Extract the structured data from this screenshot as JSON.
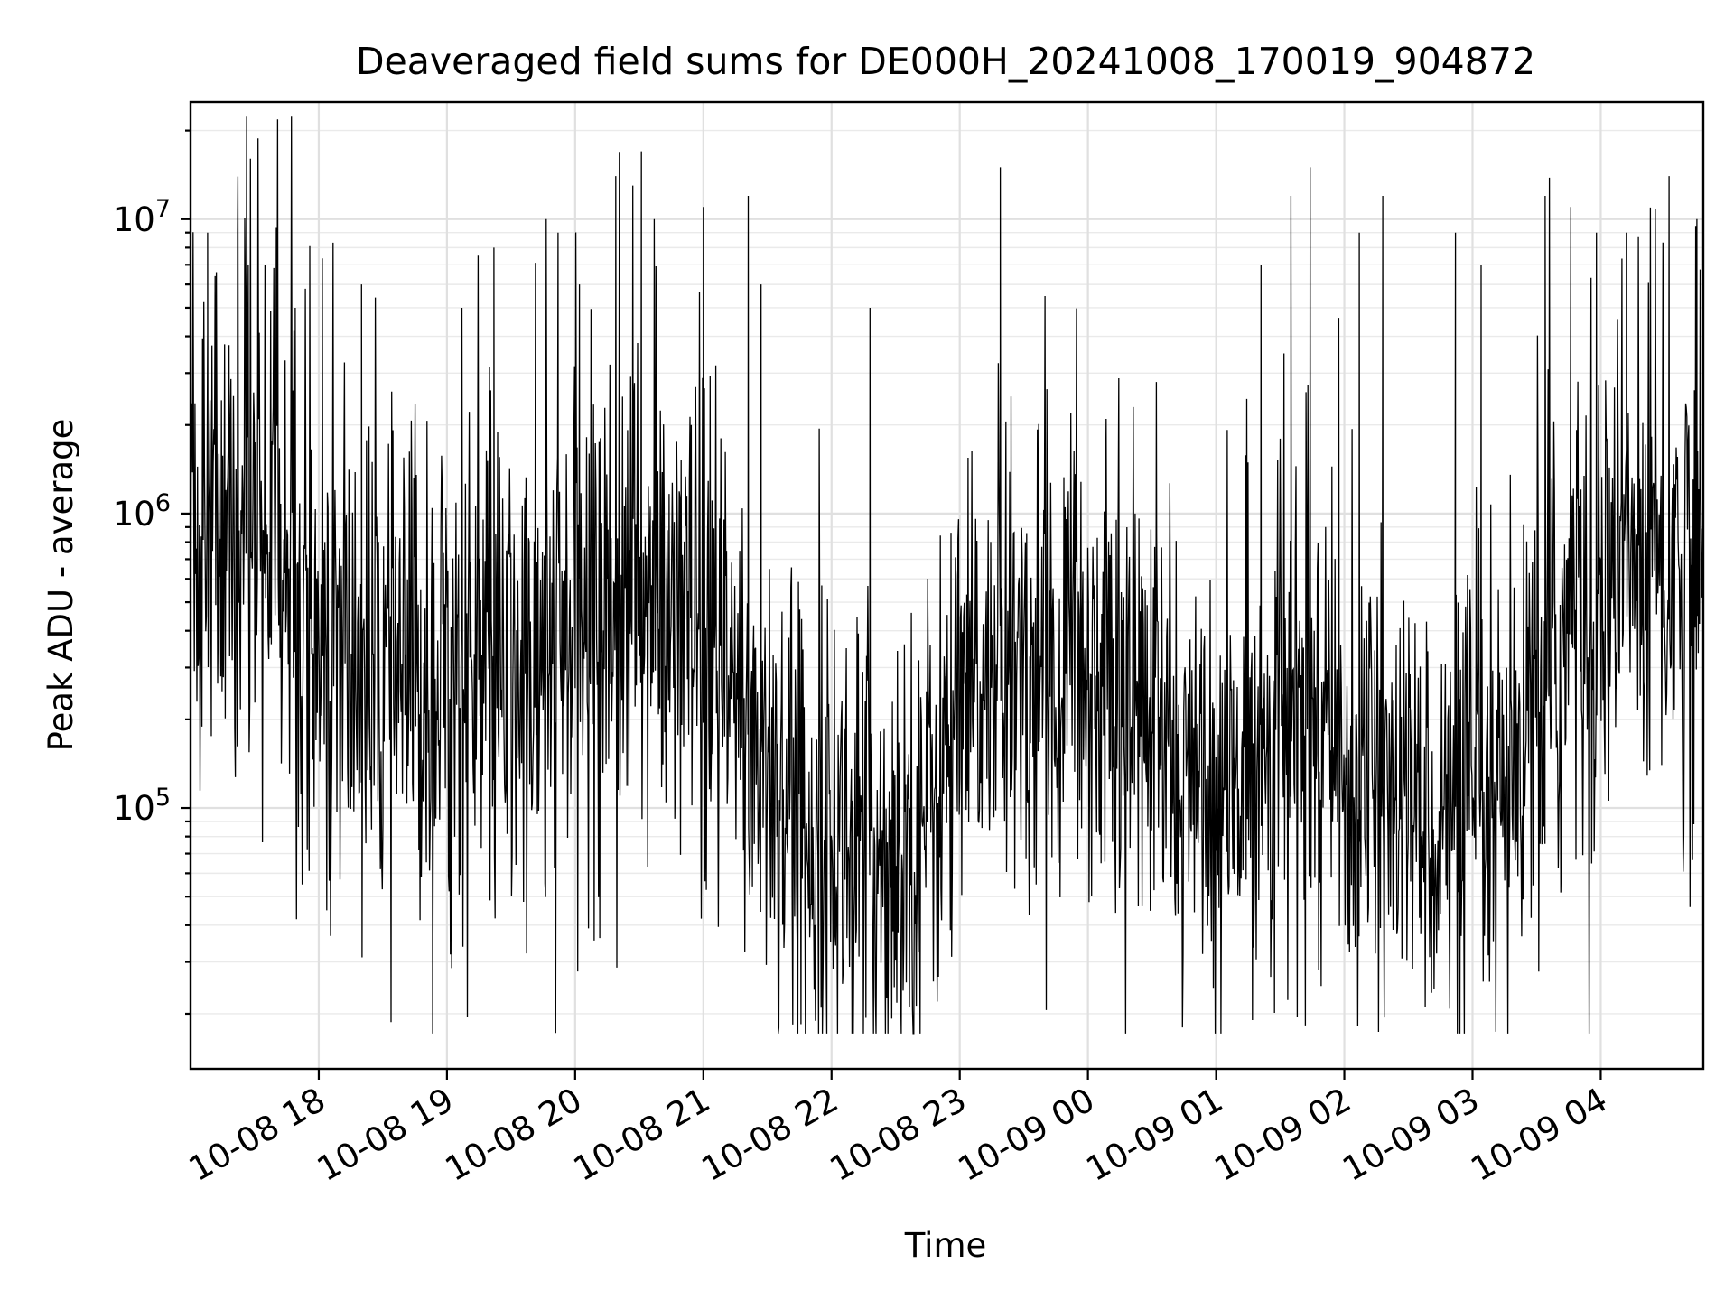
{
  "chart_data": {
    "type": "line",
    "title": "Deaveraged field sums for DE000H_20241008_170019_904872",
    "xlabel": "Time",
    "ylabel": "Peak ADU - average",
    "y_scale": "log",
    "ylim": [
      13000,
      25000000
    ],
    "xlim": [
      "2024-10-08 17:00",
      "2024-10-09 04:48"
    ],
    "grid": true,
    "line_color": "#000000",
    "x_tick_labels": [
      "10-08 18",
      "10-08 19",
      "10-08 20",
      "10-08 21",
      "10-08 22",
      "10-08 23",
      "10-09 00",
      "10-09 01",
      "10-09 02",
      "10-09 03",
      "10-09 04"
    ],
    "y_tick_labels": [
      {
        "value": 100000,
        "base": "10",
        "exp": "5"
      },
      {
        "value": 1000000,
        "base": "10",
        "exp": "6"
      },
      {
        "value": 10000000,
        "base": "10",
        "exp": "7"
      }
    ],
    "series": [
      {
        "x": [
          "2024-10-08 17:00",
          "2024-10-08 17:15",
          "2024-10-08 17:30",
          "2024-10-08 17:45",
          "2024-10-08 18:00",
          "2024-10-08 18:15",
          "2024-10-08 18:30",
          "2024-10-08 18:45",
          "2024-10-08 19:00",
          "2024-10-08 19:15",
          "2024-10-08 19:30",
          "2024-10-08 19:45",
          "2024-10-08 20:00",
          "2024-10-08 20:15",
          "2024-10-08 20:30",
          "2024-10-08 20:45",
          "2024-10-08 21:00",
          "2024-10-08 21:15",
          "2024-10-08 21:30",
          "2024-10-08 21:45",
          "2024-10-08 22:00",
          "2024-10-08 22:15",
          "2024-10-08 22:30",
          "2024-10-08 22:45",
          "2024-10-08 23:00",
          "2024-10-08 23:15",
          "2024-10-08 23:30",
          "2024-10-08 23:45",
          "2024-10-09 00:00",
          "2024-10-09 00:15",
          "2024-10-09 00:30",
          "2024-10-09 00:45",
          "2024-10-09 01:00",
          "2024-10-09 01:15",
          "2024-10-09 01:30",
          "2024-10-09 01:45",
          "2024-10-09 02:00",
          "2024-10-09 02:15",
          "2024-10-09 02:30",
          "2024-10-09 02:45",
          "2024-10-09 03:00",
          "2024-10-09 03:15",
          "2024-10-09 03:30",
          "2024-10-09 03:45",
          "2024-10-09 04:00",
          "2024-10-09 04:15",
          "2024-10-09 04:30",
          "2024-10-09 04:45"
        ],
        "y": [
          800000,
          1000000,
          900000,
          600000,
          350000,
          300000,
          250000,
          250000,
          280000,
          280000,
          250000,
          260000,
          400000,
          500000,
          550000,
          400000,
          350000,
          200000,
          150000,
          90000,
          80000,
          70000,
          70000,
          100000,
          180000,
          300000,
          280000,
          300000,
          300000,
          250000,
          200000,
          120000,
          80000,
          150000,
          180000,
          200000,
          120000,
          110000,
          100000,
          90000,
          80000,
          90000,
          200000,
          400000,
          550000,
          700000,
          650000,
          600000
        ],
        "y_spread_decades": [
          0.9,
          0.9,
          0.9,
          0.9,
          0.8,
          0.8,
          0.8,
          0.8,
          0.8,
          0.8,
          0.8,
          0.8,
          0.8,
          0.8,
          0.8,
          0.8,
          0.8,
          0.8,
          0.75,
          0.7,
          0.7,
          0.7,
          0.7,
          0.7,
          0.7,
          0.7,
          0.7,
          0.7,
          0.7,
          0.7,
          0.7,
          0.7,
          0.7,
          0.7,
          0.7,
          0.7,
          0.65,
          0.65,
          0.65,
          0.65,
          0.65,
          0.7,
          0.75,
          0.8,
          0.8,
          0.8,
          0.8,
          0.8
        ],
        "spikes": [
          {
            "x": "2024-10-08 17:08",
            "y": 9000000
          },
          {
            "x": "2024-10-08 17:22",
            "y": 9000000
          },
          {
            "x": "2024-10-08 17:27",
            "y": 7000000
          },
          {
            "x": "2024-10-08 17:49",
            "y": 5000000
          },
          {
            "x": "2024-10-08 18:20",
            "y": 6000000
          },
          {
            "x": "2024-10-08 19:07",
            "y": 5000000
          },
          {
            "x": "2024-10-08 19:22",
            "y": 8000000
          },
          {
            "x": "2024-10-08 19:52",
            "y": 9000000
          },
          {
            "x": "2024-10-08 20:02",
            "y": 6000000
          },
          {
            "x": "2024-10-08 20:19",
            "y": 14000000
          },
          {
            "x": "2024-10-08 20:27",
            "y": 13000000
          },
          {
            "x": "2024-10-08 20:31",
            "y": 17000000
          },
          {
            "x": "2024-10-08 20:37",
            "y": 10000000
          },
          {
            "x": "2024-10-08 21:00",
            "y": 11000000
          },
          {
            "x": "2024-10-08 21:21",
            "y": 12000000
          },
          {
            "x": "2024-10-08 21:27",
            "y": 6000000
          },
          {
            "x": "2024-10-08 22:18",
            "y": 5000000
          },
          {
            "x": "2024-10-08 23:19",
            "y": 15000000
          },
          {
            "x": "2024-10-08 23:24",
            "y": 2500000
          },
          {
            "x": "2024-10-09 00:32",
            "y": 2800000
          },
          {
            "x": "2024-10-09 01:21",
            "y": 7000000
          },
          {
            "x": "2024-10-09 01:35",
            "y": 12000000
          },
          {
            "x": "2024-10-09 01:44",
            "y": 15000000
          },
          {
            "x": "2024-10-09 02:07",
            "y": 9000000
          },
          {
            "x": "2024-10-09 02:18",
            "y": 12000000
          },
          {
            "x": "2024-10-09 02:52",
            "y": 9000000
          },
          {
            "x": "2024-10-09 03:04",
            "y": 7000000
          },
          {
            "x": "2024-10-09 03:34",
            "y": 12000000
          },
          {
            "x": "2024-10-09 03:46",
            "y": 11000000
          },
          {
            "x": "2024-10-09 03:58",
            "y": 9000000
          },
          {
            "x": "2024-10-09 04:12",
            "y": 9000000
          },
          {
            "x": "2024-10-09 04:32",
            "y": 14000000
          },
          {
            "x": "2024-10-09 04:45",
            "y": 10000000
          }
        ]
      }
    ]
  }
}
